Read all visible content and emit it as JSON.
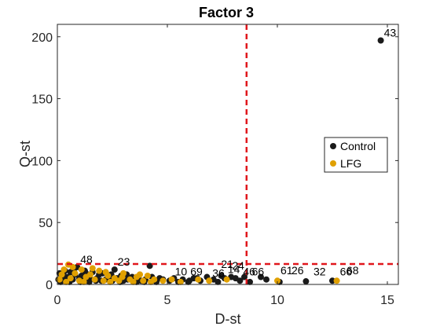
{
  "chart_data": {
    "type": "scatter",
    "title": "Factor 3",
    "xlabel": "D-st",
    "ylabel": "Q-st",
    "xlim": [
      0,
      15.5
    ],
    "ylim": [
      0,
      210
    ],
    "xticks": [
      "0",
      "5",
      "10",
      "15"
    ],
    "yticks": [
      "0",
      "50",
      "100",
      "150",
      "200"
    ],
    "xtick_values": [
      0,
      5,
      10,
      15
    ],
    "ytick_values": [
      0,
      50,
      100,
      150,
      200
    ],
    "grid": false,
    "legend_position": "right",
    "thresholds": {
      "x": 8.6,
      "y": 16.5,
      "color": "#e0161c",
      "style": "dashed"
    },
    "series": [
      {
        "name": "Control",
        "color": "#1a1a1a",
        "points": [
          [
            14.7,
            197
          ],
          [
            11.3,
            2.5
          ],
          [
            12.5,
            3
          ],
          [
            9.5,
            4
          ],
          [
            10.1,
            2
          ],
          [
            8.5,
            6
          ],
          [
            8.3,
            3
          ],
          [
            8.1,
            5
          ],
          [
            7.9,
            6
          ],
          [
            7.6,
            5
          ],
          [
            7.3,
            2
          ],
          [
            7.1,
            4
          ],
          [
            6.8,
            6
          ],
          [
            6.5,
            3
          ],
          [
            6.2,
            5
          ],
          [
            6.0,
            3
          ],
          [
            5.7,
            4
          ],
          [
            5.5,
            2
          ],
          [
            5.3,
            5
          ],
          [
            5.1,
            3
          ],
          [
            4.8,
            4
          ],
          [
            4.5,
            2
          ],
          [
            4.3,
            6
          ],
          [
            4.2,
            15
          ],
          [
            4.0,
            4
          ],
          [
            3.8,
            3
          ],
          [
            3.6,
            2
          ],
          [
            3.4,
            6
          ],
          [
            3.2,
            4
          ],
          [
            3.0,
            3
          ],
          [
            2.9,
            7
          ],
          [
            2.7,
            5
          ],
          [
            2.6,
            12
          ],
          [
            2.5,
            3
          ],
          [
            2.3,
            6
          ],
          [
            2.2,
            4
          ],
          [
            2.0,
            3
          ],
          [
            1.9,
            8
          ],
          [
            1.8,
            5
          ],
          [
            1.6,
            10
          ],
          [
            1.5,
            4
          ],
          [
            1.4,
            6
          ],
          [
            1.3,
            9
          ],
          [
            1.2,
            3
          ],
          [
            1.1,
            7
          ],
          [
            1.0,
            5
          ],
          [
            0.9,
            14
          ],
          [
            0.8,
            8
          ],
          [
            0.7,
            4
          ],
          [
            0.6,
            10
          ],
          [
            0.5,
            6
          ],
          [
            0.4,
            3
          ],
          [
            0.3,
            7
          ],
          [
            0.2,
            5
          ],
          [
            0.1,
            9
          ],
          [
            0.05,
            4
          ],
          [
            0.15,
            2
          ],
          [
            0.35,
            11
          ],
          [
            0.55,
            2
          ],
          [
            0.75,
            12
          ],
          [
            1.05,
            2
          ],
          [
            1.25,
            11
          ],
          [
            1.45,
            2
          ],
          [
            1.75,
            3
          ],
          [
            2.05,
            9
          ],
          [
            2.45,
            8
          ],
          [
            2.85,
            2
          ],
          [
            3.15,
            8
          ],
          [
            3.55,
            5
          ],
          [
            3.95,
            2
          ],
          [
            4.65,
            5
          ],
          [
            5.95,
            2
          ],
          [
            6.35,
            5
          ],
          [
            7.45,
            7
          ],
          [
            8.75,
            2
          ],
          [
            9.25,
            6
          ]
        ]
      },
      {
        "name": "LFG",
        "color": "#e0a000",
        "points": [
          [
            12.7,
            3
          ],
          [
            10.0,
            3
          ],
          [
            0.5,
            16
          ],
          [
            0.3,
            12
          ],
          [
            0.2,
            8
          ],
          [
            0.6,
            5
          ],
          [
            0.8,
            9
          ],
          [
            1.0,
            3
          ],
          [
            1.1,
            12
          ],
          [
            1.3,
            6
          ],
          [
            1.5,
            8
          ],
          [
            1.7,
            4
          ],
          [
            1.9,
            11
          ],
          [
            2.1,
            3
          ],
          [
            2.3,
            7
          ],
          [
            2.6,
            5
          ],
          [
            2.8,
            3
          ],
          [
            3.0,
            9
          ],
          [
            3.3,
            4
          ],
          [
            3.6,
            6
          ],
          [
            3.9,
            3
          ],
          [
            4.1,
            7
          ],
          [
            4.4,
            4
          ],
          [
            4.8,
            3
          ],
          [
            5.2,
            4
          ],
          [
            5.6,
            2
          ],
          [
            6.4,
            4
          ],
          [
            6.9,
            3
          ],
          [
            7.7,
            4
          ],
          [
            0.1,
            4
          ],
          [
            0.4,
            2
          ],
          [
            0.7,
            14
          ],
          [
            1.2,
            2
          ],
          [
            1.6,
            13
          ],
          [
            2.2,
            10
          ],
          [
            2.4,
            2
          ],
          [
            2.95,
            6
          ],
          [
            3.45,
            2
          ],
          [
            3.75,
            8
          ],
          [
            4.25,
            2
          ]
        ]
      }
    ],
    "annotations": [
      {
        "text": "43",
        "x": 14.7,
        "y": 197
      },
      {
        "text": "48",
        "x": 0.9,
        "y": 14
      },
      {
        "text": "23",
        "x": 2.6,
        "y": 12
      },
      {
        "text": "10",
        "x": 5.2,
        "y": 4
      },
      {
        "text": "69",
        "x": 5.9,
        "y": 4
      },
      {
        "text": "36",
        "x": 6.9,
        "y": 3
      },
      {
        "text": "21",
        "x": 7.3,
        "y": 10
      },
      {
        "text": "14",
        "x": 7.6,
        "y": 6
      },
      {
        "text": "24",
        "x": 7.8,
        "y": 9
      },
      {
        "text": "46",
        "x": 8.3,
        "y": 4
      },
      {
        "text": "66",
        "x": 8.7,
        "y": 4
      },
      {
        "text": "61",
        "x": 10.0,
        "y": 5
      },
      {
        "text": "26",
        "x": 10.5,
        "y": 5
      },
      {
        "text": "32",
        "x": 11.5,
        "y": 4
      },
      {
        "text": "66",
        "x": 12.7,
        "y": 4
      },
      {
        "text": "68",
        "x": 13.0,
        "y": 5
      }
    ]
  }
}
